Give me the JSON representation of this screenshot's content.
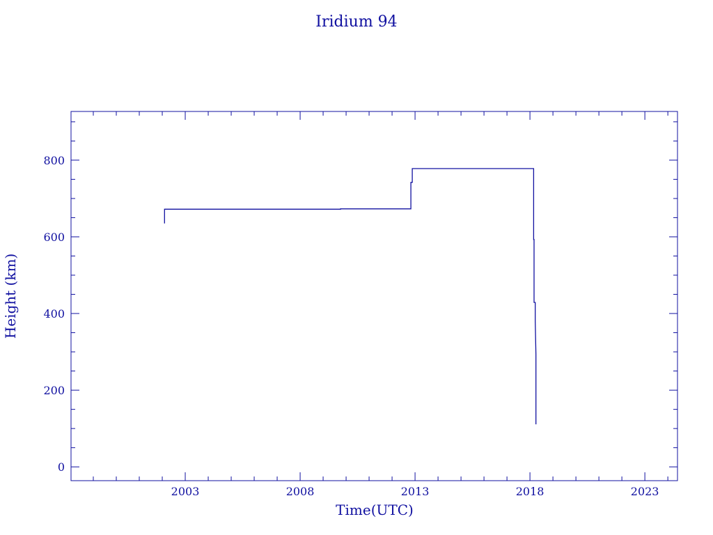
{
  "chart_data": {
    "type": "line",
    "title": "Iridium 94",
    "xlabel": "Time(UTC)",
    "ylabel": "Height (km)",
    "xlim": [
      1998.03,
      2024.42
    ],
    "ylim": [
      -36,
      927
    ],
    "x_ticks": [
      2003,
      2008,
      2013,
      2018,
      2023
    ],
    "x_tick_labels": [
      "2003",
      "2008",
      "2013",
      "2018",
      "2023"
    ],
    "y_ticks": [
      0,
      200,
      400,
      600,
      800
    ],
    "y_tick_labels": [
      "0",
      "200",
      "400",
      "600",
      "800"
    ],
    "grid": false,
    "color": "#1010a0",
    "series": [
      {
        "x": [
          2002.1,
          2002.1,
          2009.76,
          2009.76,
          2012.82,
          2012.82,
          2012.88,
          2012.88,
          2018.16,
          2018.16,
          2018.18,
          2018.18,
          2018.23,
          2018.23,
          2018.26,
          2018.26
        ],
        "y": [
          635,
          672,
          672,
          673,
          673,
          742,
          742,
          778,
          778,
          593,
          593,
          429,
          429,
          380,
          293,
          111
        ]
      }
    ]
  }
}
